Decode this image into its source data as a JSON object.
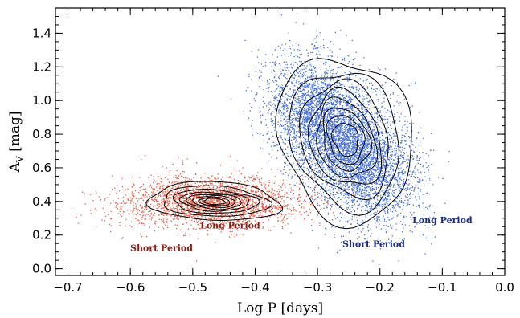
{
  "chart_data": {
    "type": "scatter",
    "title": "",
    "xlabel": "Log P [days]",
    "ylabel_main": "A",
    "ylabel_sub": "V",
    "ylabel_rest": " [mag]",
    "xlim": [
      -0.72,
      0.0
    ],
    "ylim": [
      -0.04,
      1.55
    ],
    "xticks": [
      -0.7,
      -0.6,
      -0.5,
      -0.4,
      -0.3,
      -0.2,
      -0.1,
      0.0
    ],
    "xtick_labels": [
      "−0.7",
      "−0.6",
      "−0.5",
      "−0.4",
      "−0.3",
      "−0.2",
      "−0.1",
      "0.0"
    ],
    "yticks": [
      0.0,
      0.2,
      0.4,
      0.6,
      0.8,
      1.0,
      1.2,
      1.4
    ],
    "ytick_labels": [
      "0.0",
      "0.2",
      "0.4",
      "0.6",
      "0.8",
      "1.0",
      "1.2",
      "1.4"
    ],
    "grid": false,
    "series": [
      {
        "color": "#e8614a",
        "points": 2600,
        "center": [
          -0.47,
          0.4
        ],
        "spread": [
          0.07,
          0.09
        ]
      },
      {
        "color": "#4a73d9",
        "points": 6500,
        "ridge_start": [
          -0.33,
          1.05
        ],
        "ridge_end": [
          -0.19,
          0.48
        ]
      }
    ],
    "contours": {
      "color": "#000000",
      "red_center": [
        -0.465,
        0.4
      ],
      "red_levels": [
        [
          0.105,
          0.115
        ],
        [
          0.085,
          0.09
        ],
        [
          0.068,
          0.07
        ],
        [
          0.055,
          0.055
        ],
        [
          0.044,
          0.044
        ],
        [
          0.034,
          0.034
        ],
        [
          0.025,
          0.025
        ],
        [
          0.017,
          0.018
        ]
      ],
      "blue_center": [
        -0.255,
        0.77
      ],
      "blue_levels": [
        [
          0.105,
          0.5
        ],
        [
          0.085,
          0.42
        ],
        [
          0.068,
          0.35
        ],
        [
          0.055,
          0.29
        ],
        [
          0.045,
          0.24
        ],
        [
          0.036,
          0.19
        ],
        [
          0.028,
          0.15
        ],
        [
          0.02,
          0.1
        ]
      ]
    },
    "annotations": [
      {
        "text": "Long Period",
        "x": -0.44,
        "y": 0.24,
        "color": "#8b1a12"
      },
      {
        "text": "Short Period",
        "x": -0.55,
        "y": 0.105,
        "color": "#8b1a12"
      },
      {
        "text": "Long Period",
        "x": -0.1,
        "y": 0.27,
        "color": "#1a2a8b"
      },
      {
        "text": "Short Period",
        "x": -0.21,
        "y": 0.13,
        "color": "#1a2a8b"
      }
    ]
  }
}
